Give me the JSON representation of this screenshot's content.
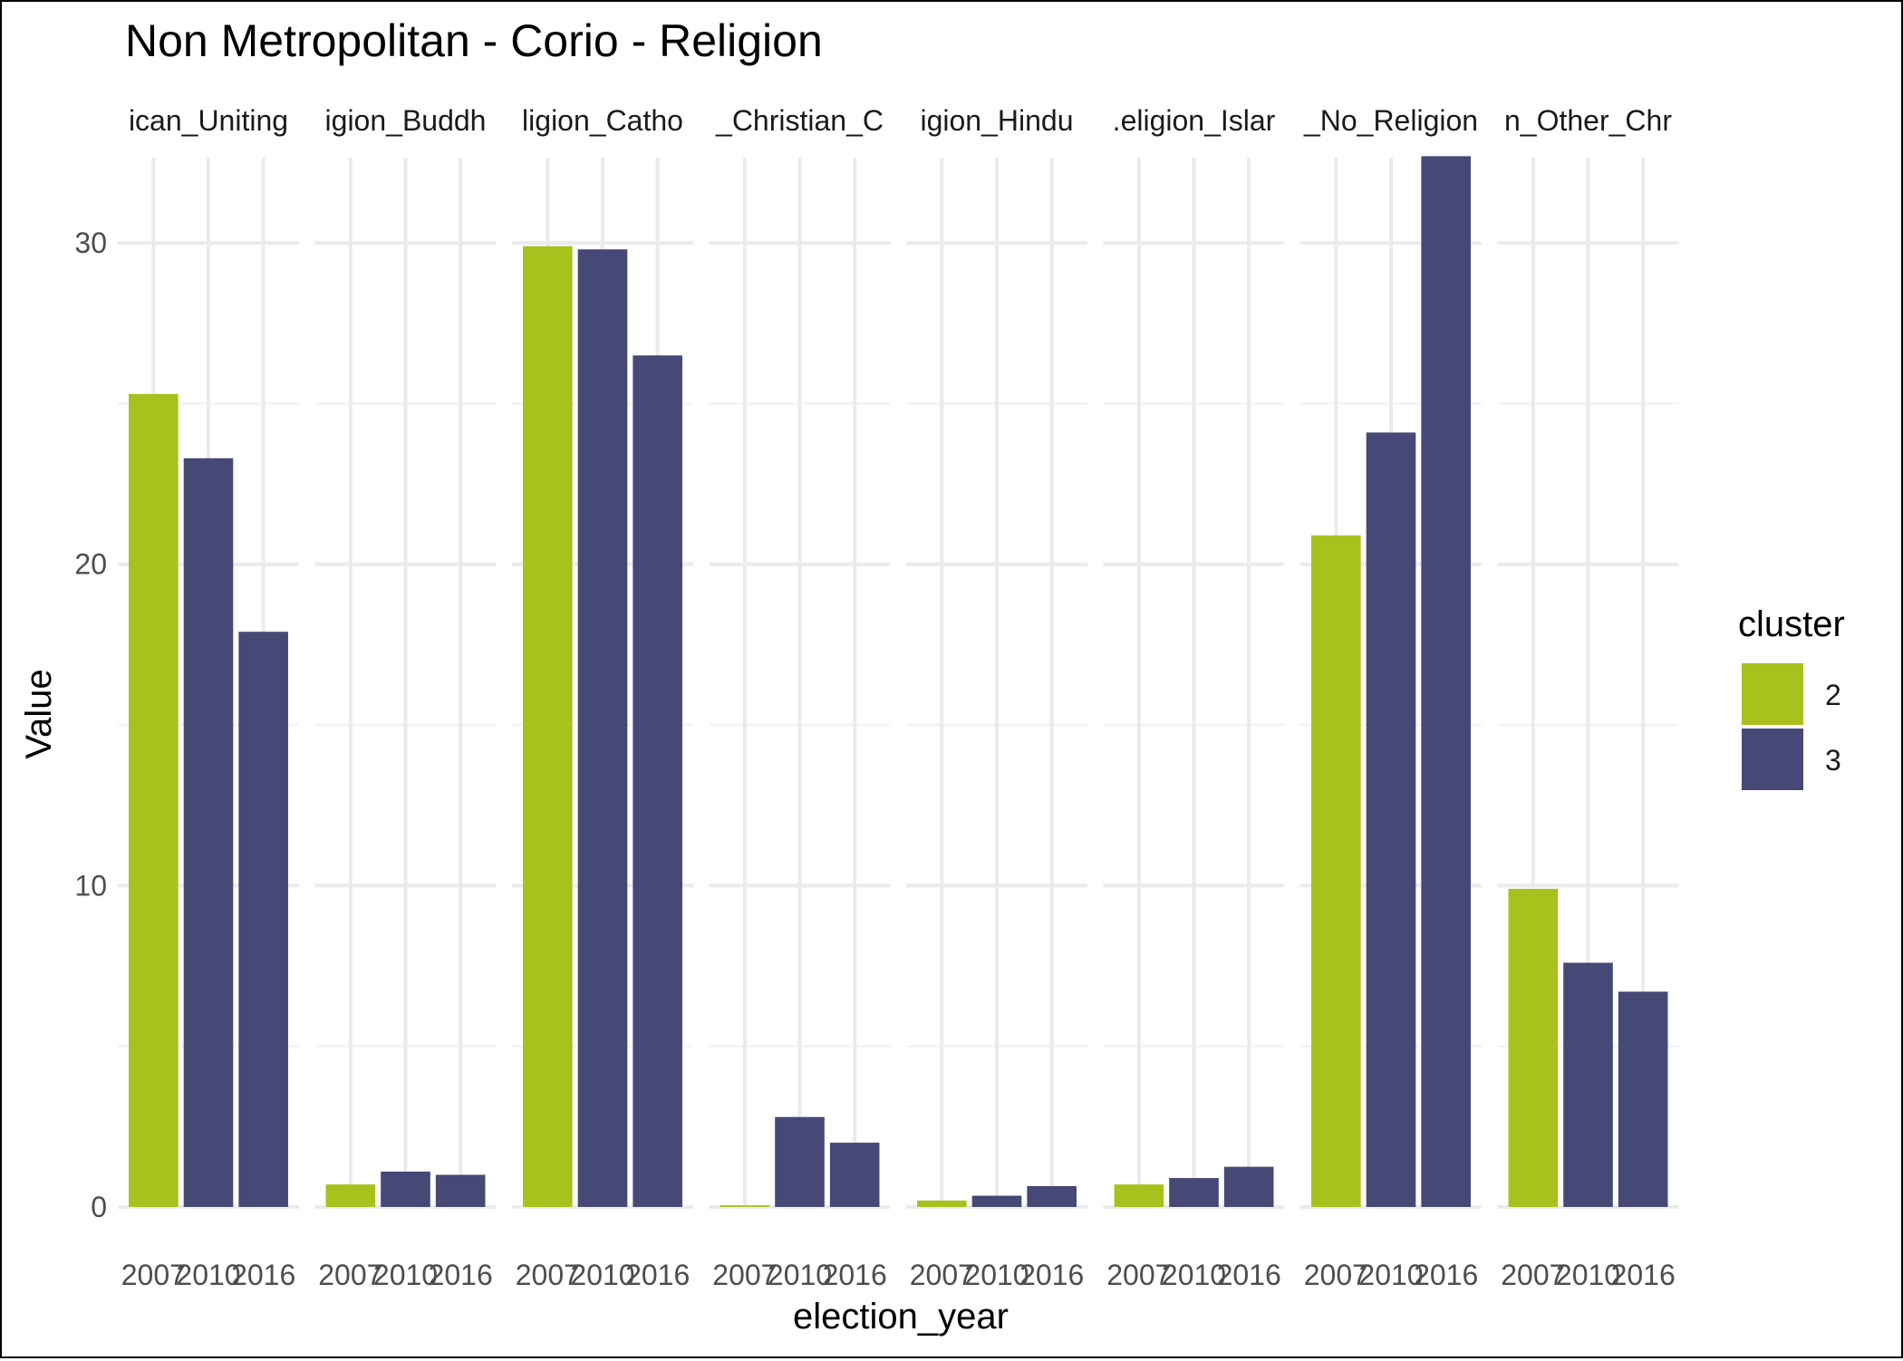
{
  "chart_data": {
    "type": "bar",
    "title": "Non Metropolitan - Corio - Religion",
    "xlabel": "election_year",
    "ylabel": "Value",
    "ylim": [
      0,
      33.5
    ],
    "yticks": [
      0,
      10,
      20,
      30
    ],
    "grid": true,
    "legend": {
      "title": "cluster",
      "position": "right",
      "entries": [
        {
          "label": "2",
          "color": "#a8c11c"
        },
        {
          "label": "3",
          "color": "#464876"
        }
      ]
    },
    "x_tick_labels": [
      "2007",
      "2010",
      "2016"
    ],
    "facets": [
      {
        "strip_label": "ican_Uniting",
        "bars": [
          {
            "year": "2007",
            "cluster": "2",
            "value": 25.3
          },
          {
            "year": "2010",
            "cluster": "3",
            "value": 23.3
          },
          {
            "year": "2016",
            "cluster": "3",
            "value": 17.9
          }
        ]
      },
      {
        "strip_label": "igion_Buddh",
        "bars": [
          {
            "year": "2007",
            "cluster": "2",
            "value": 0.7
          },
          {
            "year": "2010",
            "cluster": "3",
            "value": 1.1
          },
          {
            "year": "2016",
            "cluster": "3",
            "value": 1.0
          }
        ]
      },
      {
        "strip_label": "ligion_Catho",
        "bars": [
          {
            "year": "2007",
            "cluster": "2",
            "value": 29.9
          },
          {
            "year": "2010",
            "cluster": "3",
            "value": 29.8
          },
          {
            "year": "2016",
            "cluster": "3",
            "value": 26.5
          }
        ]
      },
      {
        "strip_label": "_Christian_C",
        "bars": [
          {
            "year": "2007",
            "cluster": "2",
            "value": 0.05
          },
          {
            "year": "2010",
            "cluster": "3",
            "value": 2.8
          },
          {
            "year": "2016",
            "cluster": "3",
            "value": 2.0
          }
        ]
      },
      {
        "strip_label": "igion_Hindu",
        "bars": [
          {
            "year": "2007",
            "cluster": "2",
            "value": 0.2
          },
          {
            "year": "2010",
            "cluster": "3",
            "value": 0.35
          },
          {
            "year": "2016",
            "cluster": "3",
            "value": 0.65
          }
        ]
      },
      {
        "strip_label": ".eligion_Islar",
        "bars": [
          {
            "year": "2007",
            "cluster": "2",
            "value": 0.7
          },
          {
            "year": "2010",
            "cluster": "3",
            "value": 0.9
          },
          {
            "year": "2016",
            "cluster": "3",
            "value": 1.25
          }
        ]
      },
      {
        "strip_label": "_No_Religion",
        "bars": [
          {
            "year": "2007",
            "cluster": "2",
            "value": 20.9
          },
          {
            "year": "2010",
            "cluster": "3",
            "value": 24.1
          },
          {
            "year": "2016",
            "cluster": "3",
            "value": 32.7
          }
        ]
      },
      {
        "strip_label": "n_Other_Chr",
        "bars": [
          {
            "year": "2007",
            "cluster": "2",
            "value": 9.9
          },
          {
            "year": "2010",
            "cluster": "3",
            "value": 7.6
          },
          {
            "year": "2016",
            "cluster": "3",
            "value": 6.7
          }
        ]
      }
    ]
  }
}
